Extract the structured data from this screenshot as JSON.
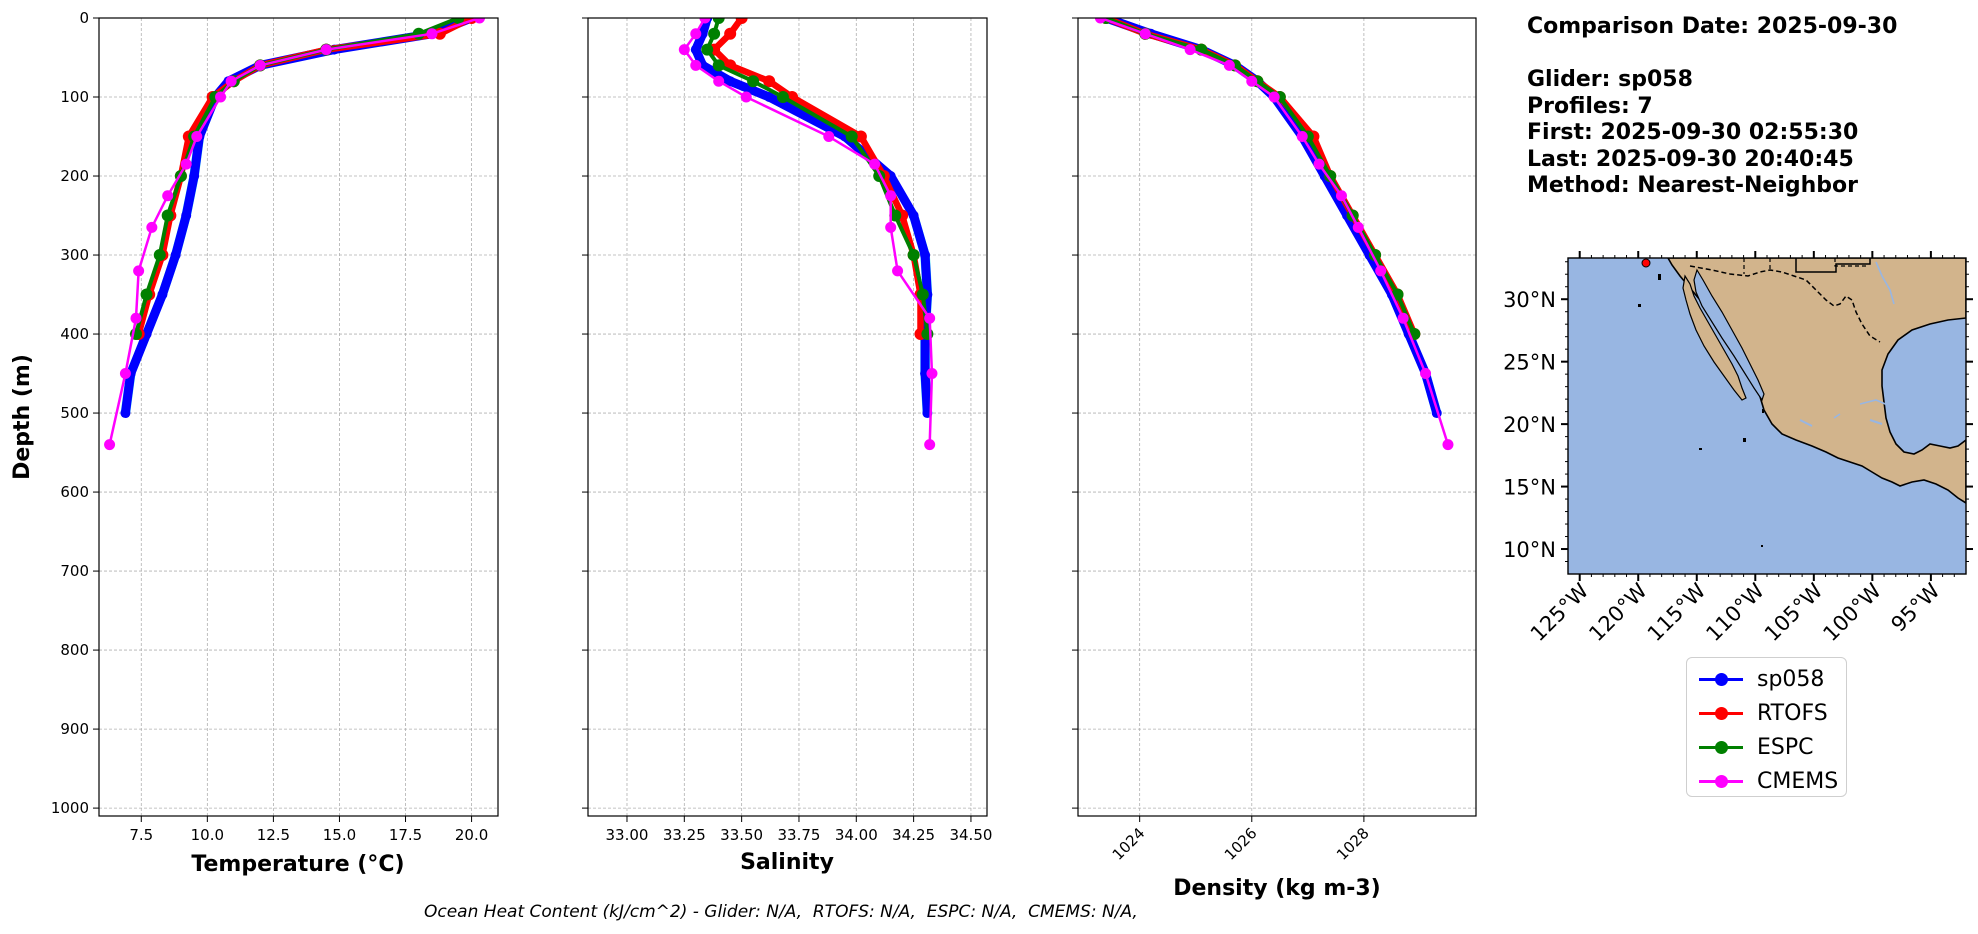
{
  "info": {
    "comparison_date": "Comparison Date: 2025-09-30",
    "glider": "Glider: sp058",
    "profiles": "Profiles: 7",
    "first": "First: 2025-09-30 02:55:30",
    "last": "Last: 2025-09-30 20:40:45",
    "method": "Method: Nearest-Neighbor"
  },
  "footer": "Ocean Heat Content (kJ/cm^2) - Glider: N/A,  RTOFS: N/A,  ESPC: N/A,  CMEMS: N/A,",
  "colors": {
    "sp058": "#0000ff",
    "RTOFS": "#ff0000",
    "ESPC": "#008000",
    "CMEMS": "#ff00ff",
    "glider_profiles": "#00e5ee",
    "ocean": "#98b6e2",
    "land": "#d2b48c"
  },
  "legend": [
    {
      "name": "sp058",
      "color": "#0000ff"
    },
    {
      "name": "RTOFS",
      "color": "#ff0000"
    },
    {
      "name": "ESPC",
      "color": "#008000"
    },
    {
      "name": "CMEMS",
      "color": "#ff00ff"
    }
  ],
  "chart_data": [
    {
      "type": "line",
      "xlabel": "Temperature (°C)",
      "ylabel": "Depth (m)",
      "xlim": [
        5.9,
        21.0
      ],
      "ylim": [
        1010,
        0
      ],
      "xticks": [
        7.5,
        10.0,
        12.5,
        15.0,
        17.5,
        20.0
      ],
      "xtick_labels": [
        "7.5",
        "10.0",
        "12.5",
        "15.0",
        "17.5",
        "20.0"
      ],
      "yticks": [
        0,
        100,
        200,
        300,
        400,
        500,
        600,
        700,
        800,
        900,
        1000
      ],
      "grid": true,
      "series": [
        {
          "name": "sp058",
          "depth": [
            0,
            20,
            40,
            60,
            80,
            100,
            150,
            200,
            250,
            300,
            350,
            400,
            450,
            500
          ],
          "values": [
            20.0,
            18.5,
            14.8,
            12.0,
            10.8,
            10.3,
            9.7,
            9.5,
            9.2,
            8.8,
            8.3,
            7.7,
            7.1,
            6.9
          ]
        },
        {
          "name": "RTOFS",
          "depth": [
            0,
            20,
            40,
            60,
            80,
            100,
            150,
            200,
            250,
            300,
            350,
            400
          ],
          "values": [
            20.0,
            18.8,
            14.5,
            12.0,
            11.0,
            10.2,
            9.3,
            9.0,
            8.6,
            8.3,
            7.8,
            7.4
          ]
        },
        {
          "name": "ESPC",
          "depth": [
            0,
            20,
            40,
            60,
            80,
            100,
            150,
            200,
            250,
            300,
            350,
            400
          ],
          "values": [
            19.5,
            18.0,
            14.5,
            12.0,
            11.0,
            10.3,
            9.5,
            9.0,
            8.5,
            8.2,
            7.7,
            7.3
          ]
        },
        {
          "name": "CMEMS",
          "depth": [
            0,
            20,
            40,
            60,
            80,
            100,
            150,
            185,
            225,
            265,
            320,
            380,
            450,
            540
          ],
          "values": [
            20.3,
            18.5,
            14.5,
            12.0,
            10.9,
            10.5,
            9.6,
            9.2,
            8.5,
            7.9,
            7.4,
            7.3,
            6.9,
            6.3
          ]
        }
      ]
    },
    {
      "type": "line",
      "xlabel": "Salinity",
      "ylabel": "Depth (m)",
      "xlim": [
        32.83,
        34.57
      ],
      "ylim": [
        1010,
        0
      ],
      "xticks": [
        33.0,
        33.25,
        33.5,
        33.75,
        34.0,
        34.25,
        34.5
      ],
      "xtick_labels": [
        "33.00",
        "33.25",
        "33.50",
        "33.75",
        "34.00",
        "34.25",
        "34.50"
      ],
      "yticks": [
        0,
        100,
        200,
        300,
        400,
        500,
        600,
        700,
        800,
        900,
        1000
      ],
      "grid": true,
      "series": [
        {
          "name": "sp058",
          "depth": [
            0,
            20,
            40,
            60,
            80,
            100,
            150,
            200,
            250,
            300,
            350,
            400,
            450,
            500
          ],
          "values": [
            33.35,
            33.33,
            33.3,
            33.33,
            33.45,
            33.62,
            33.95,
            34.15,
            34.25,
            34.3,
            34.31,
            34.3,
            34.3,
            34.31
          ]
        },
        {
          "name": "RTOFS",
          "depth": [
            0,
            20,
            40,
            60,
            80,
            100,
            150,
            200,
            250,
            300,
            350,
            400
          ],
          "values": [
            33.5,
            33.45,
            33.38,
            33.45,
            33.62,
            33.72,
            34.02,
            34.12,
            34.2,
            34.25,
            34.28,
            34.28
          ]
        },
        {
          "name": "ESPC",
          "depth": [
            0,
            20,
            40,
            60,
            80,
            100,
            150,
            200,
            250,
            300,
            350,
            400
          ],
          "values": [
            33.4,
            33.38,
            33.35,
            33.4,
            33.55,
            33.68,
            33.98,
            34.1,
            34.17,
            34.25,
            34.29,
            34.31
          ]
        },
        {
          "name": "CMEMS",
          "depth": [
            0,
            20,
            40,
            60,
            80,
            100,
            150,
            185,
            225,
            265,
            320,
            380,
            450,
            540
          ],
          "values": [
            33.34,
            33.3,
            33.25,
            33.3,
            33.4,
            33.52,
            33.88,
            34.08,
            34.15,
            34.15,
            34.18,
            34.32,
            34.33,
            34.32
          ]
        }
      ]
    },
    {
      "type": "line",
      "xlabel": "Density (kg m-3)",
      "ylabel": "Depth (m)",
      "xlim": [
        1022.9,
        1030.0
      ],
      "ylim": [
        1010,
        0
      ],
      "xticks": [
        1024,
        1026,
        1028
      ],
      "xtick_labels": [
        "1024",
        "1026",
        "1028"
      ],
      "yticks": [
        0,
        100,
        200,
        300,
        400,
        500,
        600,
        700,
        800,
        900,
        1000
      ],
      "grid": true,
      "series": [
        {
          "name": "sp058",
          "depth": [
            0,
            20,
            40,
            60,
            80,
            100,
            150,
            200,
            250,
            300,
            350,
            400,
            450,
            500
          ],
          "values": [
            1023.4,
            1024.2,
            1025.1,
            1025.7,
            1026.1,
            1026.4,
            1026.9,
            1027.3,
            1027.7,
            1028.1,
            1028.5,
            1028.8,
            1029.1,
            1029.3
          ]
        },
        {
          "name": "RTOFS",
          "depth": [
            0,
            20,
            40,
            60,
            80,
            100,
            150,
            200,
            250,
            300,
            350,
            400
          ],
          "values": [
            1023.4,
            1024.1,
            1025.1,
            1025.7,
            1026.1,
            1026.5,
            1027.1,
            1027.4,
            1027.8,
            1028.2,
            1028.6,
            1028.9
          ]
        },
        {
          "name": "ESPC",
          "depth": [
            0,
            20,
            40,
            60,
            80,
            100,
            150,
            200,
            250,
            300,
            350,
            400
          ],
          "values": [
            1023.4,
            1024.1,
            1025.1,
            1025.7,
            1026.1,
            1026.5,
            1027.0,
            1027.4,
            1027.8,
            1028.2,
            1028.6,
            1028.9
          ]
        },
        {
          "name": "CMEMS",
          "depth": [
            0,
            20,
            40,
            60,
            80,
            100,
            150,
            185,
            225,
            265,
            320,
            380,
            450,
            540
          ],
          "values": [
            1023.3,
            1024.1,
            1024.9,
            1025.6,
            1026.0,
            1026.4,
            1026.9,
            1027.2,
            1027.6,
            1027.9,
            1028.3,
            1028.7,
            1029.1,
            1029.5
          ]
        }
      ]
    },
    {
      "type": "map",
      "lon_ticks": [
        -125,
        -120,
        -115,
        -110,
        -105,
        -100,
        -95
      ],
      "lon_tick_labels": [
        "125°W",
        "120°W",
        "115°W",
        "110°W",
        "105°W",
        "100°W",
        "95°W"
      ],
      "lat_ticks": [
        10,
        15,
        20,
        25,
        30
      ],
      "lat_tick_labels": [
        "10°N",
        "15°N",
        "20°N",
        "25°N",
        "30°N"
      ],
      "lon_range": [
        -126,
        -92
      ],
      "lat_range": [
        8,
        33.3
      ],
      "glider_position": {
        "lon": -120.2,
        "lat": 33.0
      }
    }
  ]
}
